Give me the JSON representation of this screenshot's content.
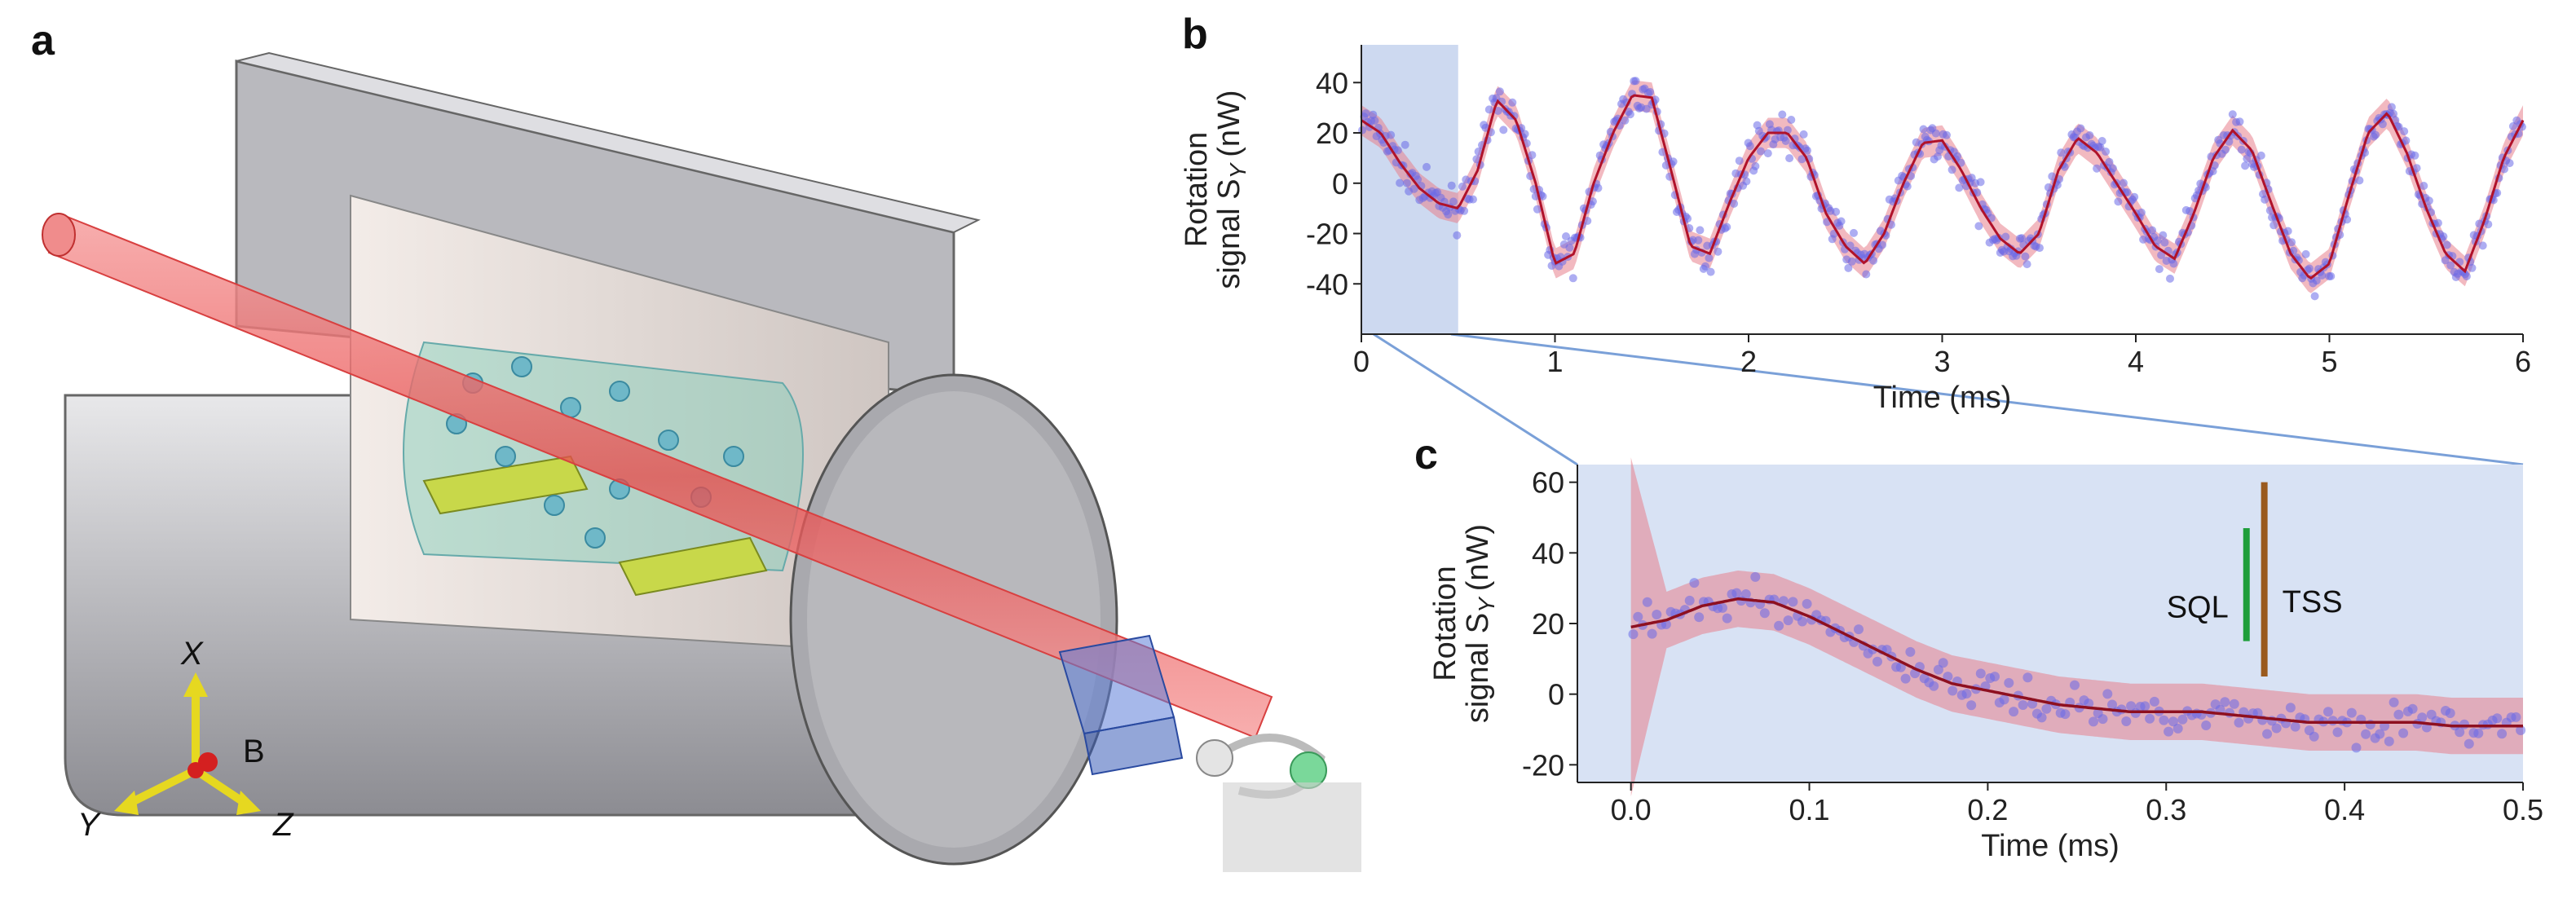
{
  "panels": {
    "a": {
      "label": "a",
      "axes_labels": {
        "x": "X",
        "b": "B",
        "y": "Y",
        "z": "Z"
      }
    },
    "b": {
      "label": "b"
    },
    "c": {
      "label": "c"
    }
  },
  "chart_data": [
    {
      "panel": "b",
      "type": "line",
      "xlabel": "Time (ms)",
      "ylabel_line1": "Rotation",
      "ylabel_line2": "signal S",
      "ylabel_sub": "Y",
      "ylabel_unit": "(nW)",
      "xlim": [
        0,
        6
      ],
      "ylim": [
        -60,
        55
      ],
      "xticks": [
        0,
        1,
        2,
        3,
        4,
        5,
        6
      ],
      "yticks": [
        -40,
        -20,
        0,
        20,
        40
      ],
      "highlight_x": [
        0,
        0.5
      ],
      "series": [
        {
          "kind": "fit",
          "color": "#b0122a",
          "x": [
            0,
            0.1,
            0.2,
            0.3,
            0.4,
            0.5,
            0.6,
            0.7,
            0.8,
            0.9,
            1.0,
            1.1,
            1.2,
            1.3,
            1.4,
            1.5,
            1.6,
            1.7,
            1.8,
            1.9,
            2.0,
            2.1,
            2.2,
            2.3,
            2.4,
            2.5,
            2.6,
            2.7,
            2.8,
            2.9,
            3.0,
            3.1,
            3.2,
            3.3,
            3.4,
            3.5,
            3.6,
            3.7,
            3.8,
            3.9,
            4.0,
            4.1,
            4.2,
            4.3,
            4.4,
            4.5,
            4.6,
            4.7,
            4.8,
            4.9,
            5.0,
            5.1,
            5.2,
            5.3,
            5.4,
            5.5,
            5.6,
            5.7,
            5.8,
            5.9,
            6.0
          ],
          "values": [
            25,
            20,
            8,
            -2,
            -8,
            -10,
            5,
            33,
            25,
            0,
            -32,
            -28,
            0,
            20,
            35,
            34,
            5,
            -25,
            -28,
            -8,
            10,
            20,
            20,
            10,
            -12,
            -25,
            -32,
            -20,
            0,
            16,
            17,
            5,
            -10,
            -22,
            -28,
            -20,
            5,
            18,
            12,
            0,
            -12,
            -25,
            -30,
            -12,
            10,
            21,
            13,
            -8,
            -28,
            -38,
            -32,
            -5,
            20,
            28,
            12,
            -10,
            -28,
            -35,
            -15,
            10,
            25
          ]
        }
      ]
    },
    {
      "panel": "c",
      "type": "line",
      "xlabel": "Time (ms)",
      "ylabel_line1": "Rotation",
      "ylabel_line2": "signal S",
      "ylabel_sub": "Y",
      "ylabel_unit": "(nW)",
      "xlim": [
        -0.03,
        0.5
      ],
      "ylim": [
        -25,
        65
      ],
      "xticks": [
        0.0,
        0.1,
        0.2,
        0.3,
        0.4,
        0.5
      ],
      "xtick_labels": [
        "0.0",
        "0.1",
        "0.2",
        "0.3",
        "0.4",
        "0.5"
      ],
      "yticks": [
        -20,
        0,
        20,
        40,
        60
      ],
      "bars": [
        {
          "name": "SQL",
          "color": "#1e9e3a",
          "x": 0.345,
          "y0": 15,
          "y1": 47
        },
        {
          "name": "TSS",
          "color": "#9a5a1e",
          "x": 0.355,
          "y0": 5,
          "y1": 60
        }
      ],
      "series": [
        {
          "kind": "fit",
          "color": "#8e1020",
          "x": [
            0.0,
            0.02,
            0.04,
            0.06,
            0.08,
            0.1,
            0.12,
            0.14,
            0.16,
            0.18,
            0.2,
            0.22,
            0.24,
            0.26,
            0.28,
            0.3,
            0.32,
            0.34,
            0.36,
            0.38,
            0.4,
            0.42,
            0.44,
            0.46,
            0.48,
            0.5
          ],
          "values": [
            19,
            21,
            25,
            27,
            26,
            22,
            17,
            12,
            7,
            3,
            1,
            -1,
            -3,
            -4,
            -5,
            -5,
            -5,
            -6,
            -7,
            -8,
            -8,
            -8,
            -8,
            -9,
            -9,
            -9
          ]
        }
      ]
    }
  ]
}
